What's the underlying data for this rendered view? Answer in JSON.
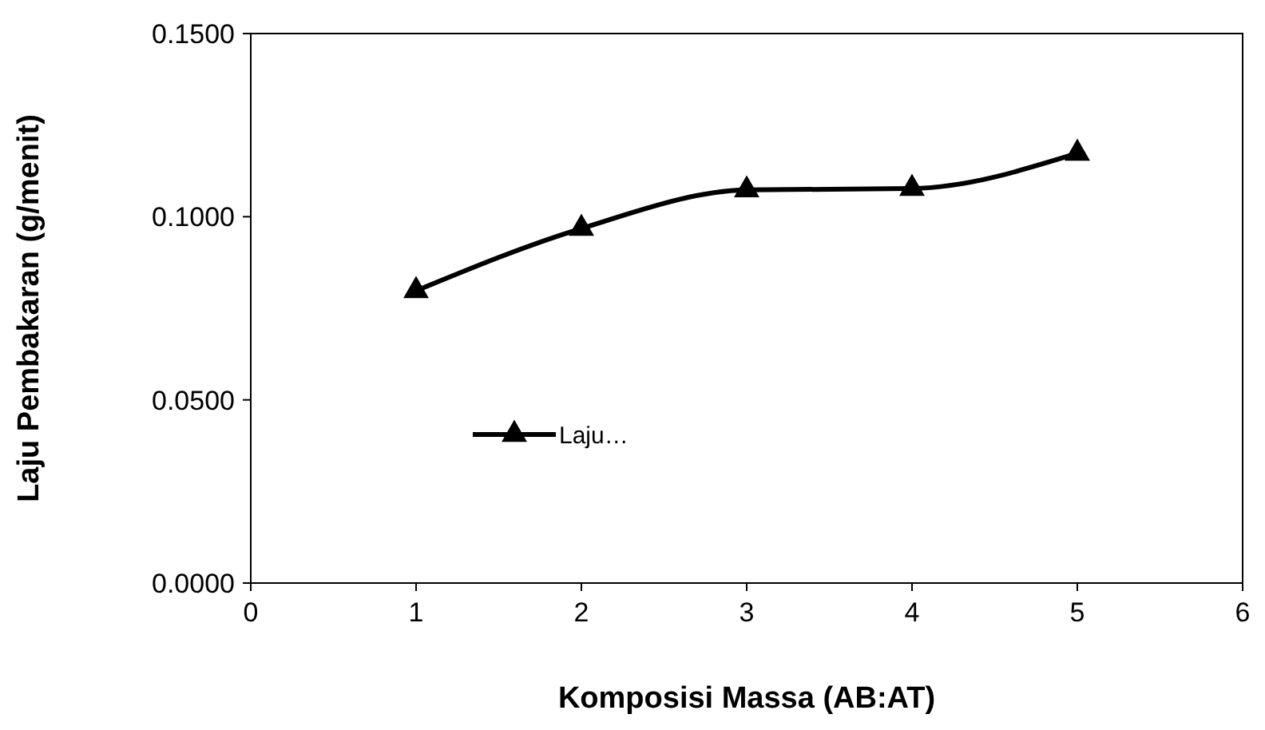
{
  "chart_data": {
    "type": "line",
    "xlabel": "Komposisi Massa (AB:AT)",
    "ylabel": "Laju Pembakaran (g/menit)",
    "x": [
      1,
      2,
      3,
      4,
      5
    ],
    "series": [
      {
        "name": "Laju…",
        "color": "#000000",
        "values": [
          0.0798,
          0.0968,
          0.1073,
          0.1077,
          0.1173
        ]
      }
    ],
    "xlim": [
      0,
      6
    ],
    "xticks": [
      0,
      1,
      2,
      3,
      4,
      5,
      6
    ],
    "ylim": [
      0,
      0.15
    ],
    "yticks": [
      {
        "value": 0,
        "label": "0.0000"
      },
      {
        "value": 0.05,
        "label": "0.0500"
      },
      {
        "value": 0.1,
        "label": "0.1000"
      },
      {
        "value": 0.15,
        "label": "0.1500"
      }
    ],
    "grid": false,
    "legend": "left",
    "marker": "triangle",
    "line_style": "solid"
  }
}
